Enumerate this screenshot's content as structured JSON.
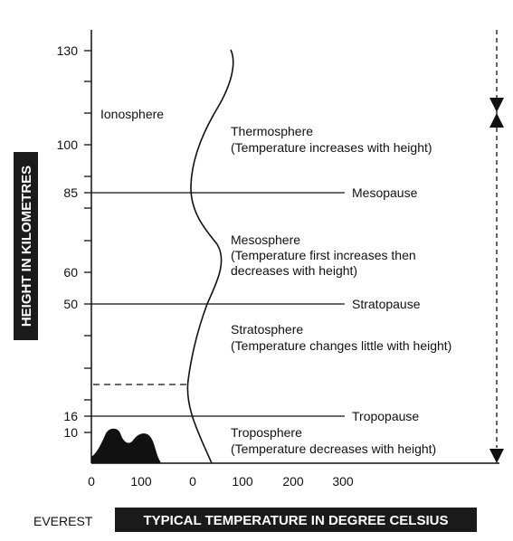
{
  "y_axis": {
    "title": "HEIGHT IN KILOMETRES",
    "ticks": [
      "130",
      "100",
      "85",
      "60",
      "50",
      "16",
      "10"
    ]
  },
  "x_axis": {
    "title": "TYPICAL TEMPERATURE IN DEGREE CELSIUS",
    "ticks": [
      "0",
      "100",
      "0",
      "100",
      "200",
      "300"
    ],
    "everest_label": "EVEREST"
  },
  "layers": {
    "ionosphere": "Ionosphere",
    "thermosphere": {
      "name": "Thermosphere",
      "note": "(Temperature increases with height)"
    },
    "mesopause": "Mesopause",
    "mesosphere": {
      "name": "Mesosphere",
      "note1": "(Temperature first increases then",
      "note2": "decreases with height)"
    },
    "stratopause": "Stratopause",
    "stratosphere": {
      "name": "Stratosphere",
      "note": "(Temperature changes little with height)"
    },
    "tropopause": "Tropopause",
    "troposphere": {
      "name": "Troposphere",
      "note": "(Temperature decreases with height)"
    }
  },
  "colors": {
    "ink": "#111111",
    "label_bg": "#1a1a1a"
  }
}
